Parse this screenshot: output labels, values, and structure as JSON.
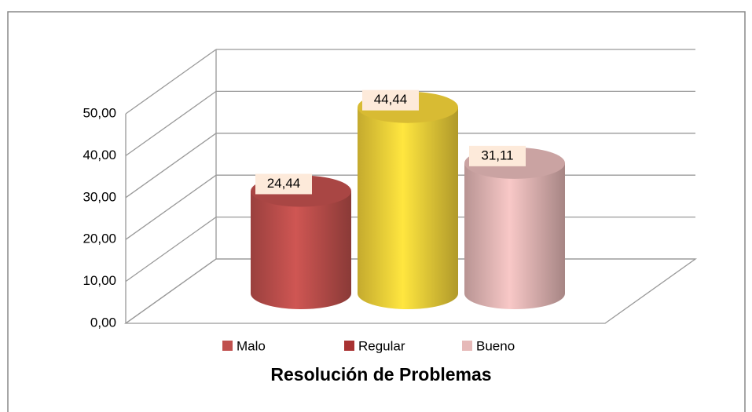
{
  "chart_data": {
    "type": "bar3d",
    "title": "Resolución de Problemas",
    "categories": [
      "Malo",
      "Regular",
      "Bueno"
    ],
    "values": [
      24.44,
      44.44,
      31.11
    ],
    "value_labels": [
      "24,44",
      "44,44",
      "31,11"
    ],
    "colors": [
      "#c0504d",
      "#f5d53a",
      "#e6b9b8"
    ],
    "legend_colors": [
      "#c0504d",
      "#a83232",
      "#e6b9b8"
    ],
    "ylim": [
      0,
      50
    ],
    "yticks": [
      {
        "value": 0,
        "label": "0,00"
      },
      {
        "value": 10,
        "label": "10,00"
      },
      {
        "value": 20,
        "label": "20,00"
      },
      {
        "value": 30,
        "label": "30,00"
      },
      {
        "value": 40,
        "label": "40,00"
      },
      {
        "value": 50,
        "label": "50,00"
      }
    ],
    "grid": true
  }
}
